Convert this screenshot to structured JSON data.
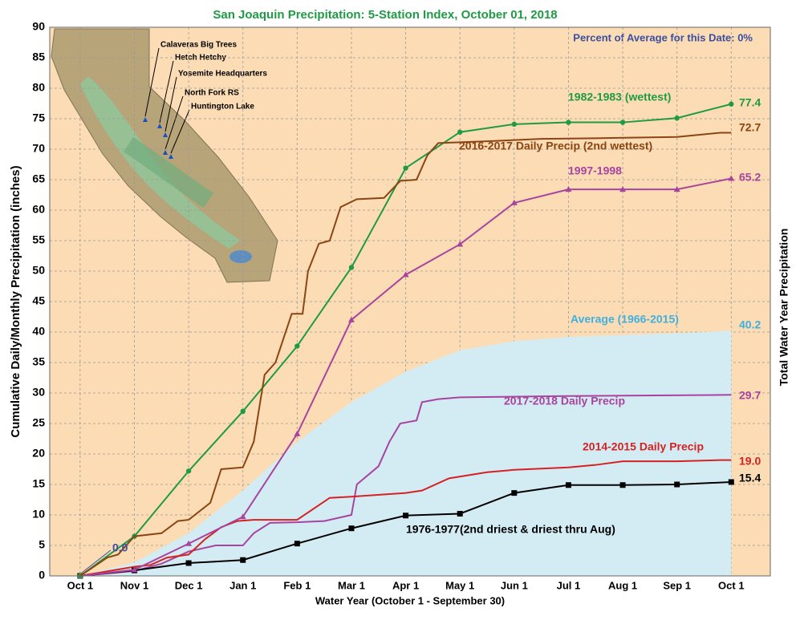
{
  "chart_data": {
    "type": "line",
    "title": "San Joaquin Precipitation: 5-Station Index, October 01, 2018",
    "subtitle": "Percent of Average for this Date: 0%",
    "x_label": "Water Year (October 1 - September 30)",
    "y_label": "Cumulative Daily/Monthly Precipitation (inches)",
    "y2_label": "Total Water Year Precipitation",
    "xlim": [
      -0.56,
      12.72
    ],
    "xticks": [
      {
        "value": 0,
        "label": "Oct 1"
      },
      {
        "value": 1,
        "label": "Nov 1"
      },
      {
        "value": 2,
        "label": "Dec 1"
      },
      {
        "value": 3,
        "label": "Jan 1"
      },
      {
        "value": 4,
        "label": "Feb 1"
      },
      {
        "value": 5,
        "label": "Mar 1"
      },
      {
        "value": 6,
        "label": "Apr 1"
      },
      {
        "value": 7,
        "label": "May 1"
      },
      {
        "value": 8,
        "label": "Jun 1"
      },
      {
        "value": 9,
        "label": "Jul 1"
      },
      {
        "value": 10,
        "label": "Aug 1"
      },
      {
        "value": 11,
        "label": "Sep 1"
      },
      {
        "value": 12,
        "label": "Oct 1"
      }
    ],
    "ylim": [
      0,
      90
    ],
    "yticks": [
      0,
      5,
      10,
      15,
      20,
      25,
      30,
      35,
      40,
      45,
      50,
      55,
      60,
      65,
      70,
      75,
      80,
      85,
      90
    ],
    "grid": true,
    "series": [
      {
        "name": "Average (1966-2015)",
        "color": "#d3ecf4",
        "label_color": "#3fb0e0",
        "fill": true,
        "x": [
          0,
          1,
          2,
          3,
          4,
          5,
          6,
          7,
          8,
          9,
          10,
          11,
          12
        ],
        "values": [
          0,
          2.2,
          7,
          14,
          22,
          28.5,
          33.5,
          37,
          38.5,
          39.2,
          39.5,
          39.8,
          40.2
        ],
        "end_label": "40.2"
      },
      {
        "name": "2017-2018 Daily Precip",
        "color": "#a8449e",
        "label_color": "#a8449e",
        "x": [
          0,
          1,
          1.5,
          2,
          2.5,
          3,
          3.2,
          3.5,
          4,
          4.5,
          5,
          5.1,
          5.5,
          5.7,
          5.9,
          6.2,
          6.3,
          6.6,
          7,
          9,
          12
        ],
        "values": [
          0,
          0.8,
          2,
          4,
          5,
          5,
          7,
          8.7,
          8.8,
          9,
          10,
          15,
          18,
          22,
          25,
          25.5,
          28.5,
          29,
          29.3,
          29.5,
          29.7
        ],
        "end_label": "29.7"
      },
      {
        "name": "2014-2015 Daily Precip",
        "color": "#d42222",
        "label_color": "#d42222",
        "x": [
          0,
          1,
          1.3,
          1.6,
          2,
          2.3,
          2.6,
          2.9,
          3.2,
          4,
          4.6,
          5,
          6,
          6.3,
          6.8,
          7.5,
          8,
          9,
          9.5,
          10,
          11,
          11.8,
          12
        ],
        "values": [
          0,
          1.5,
          1.8,
          3,
          3.5,
          6,
          8,
          9,
          9.2,
          9.2,
          12.8,
          13,
          13.6,
          14,
          16,
          17,
          17.4,
          17.8,
          18.2,
          18.8,
          18.8,
          19,
          19
        ],
        "end_label": "19.0"
      },
      {
        "name": "1976-1977(2nd driest & driest thru Aug)",
        "color": "#000000",
        "label_color": "#000000",
        "marker": "square",
        "x": [
          0,
          1,
          2,
          3,
          4,
          5,
          6,
          7,
          8,
          9,
          10,
          11,
          12
        ],
        "values": [
          0,
          0.9,
          2.1,
          2.6,
          5.3,
          7.8,
          9.9,
          10.2,
          13.6,
          14.9,
          14.9,
          15.0,
          15.4
        ],
        "end_label": "15.4"
      },
      {
        "name": "1997-1998",
        "color": "#a8449e",
        "label_color": "#a8449e",
        "marker": "triangle",
        "x": [
          0,
          1,
          2,
          3,
          4,
          5,
          6,
          7,
          8,
          9,
          10,
          11,
          12
        ],
        "values": [
          0,
          1,
          5.3,
          9.7,
          23.3,
          42,
          49.4,
          54.4,
          61.2,
          63.4,
          63.4,
          63.4,
          65.2
        ],
        "end_label": "65.2"
      },
      {
        "name": "1982-1983 (wettest)",
        "color": "#1f9a45",
        "label_color": "#1f9a45",
        "marker": "circle",
        "x": [
          0,
          1,
          2,
          3,
          4,
          5,
          6,
          7,
          8,
          9,
          10,
          11,
          12
        ],
        "values": [
          0,
          6.5,
          17.2,
          27,
          37.7,
          50.6,
          66.9,
          72.8,
          74.1,
          74.4,
          74.4,
          75.1,
          77.4
        ],
        "end_label": "77.4"
      },
      {
        "name": "2016-2017 Daily Precip (2nd wettest)",
        "color": "#8b4513",
        "label_color": "#8b4513",
        "x": [
          0,
          0.5,
          0.7,
          1,
          1.5,
          1.8,
          2,
          2.4,
          2.6,
          3,
          3.2,
          3.4,
          3.6,
          3.9,
          4.1,
          4.2,
          4.4,
          4.6,
          4.8,
          5.1,
          5.6,
          5.9,
          6.2,
          6.4,
          6.6,
          7.5,
          8.5,
          9.5,
          11,
          11.8,
          12
        ],
        "values": [
          0,
          3,
          3.5,
          6.5,
          7,
          9,
          9.2,
          12,
          17.5,
          17.8,
          22,
          33,
          35,
          43,
          43,
          50,
          54.5,
          55,
          60.5,
          61.8,
          62,
          64.8,
          65,
          69,
          71,
          71.3,
          71.7,
          71.8,
          72,
          72.7,
          72.7
        ],
        "end_label": "72.7"
      }
    ],
    "annotations": [
      "0.0"
    ],
    "stations": [
      "Calaveras Big Trees",
      "Hetch Hetchy",
      "Yosemite Headquarters",
      "North Fork RS",
      "Huntington Lake"
    ]
  }
}
